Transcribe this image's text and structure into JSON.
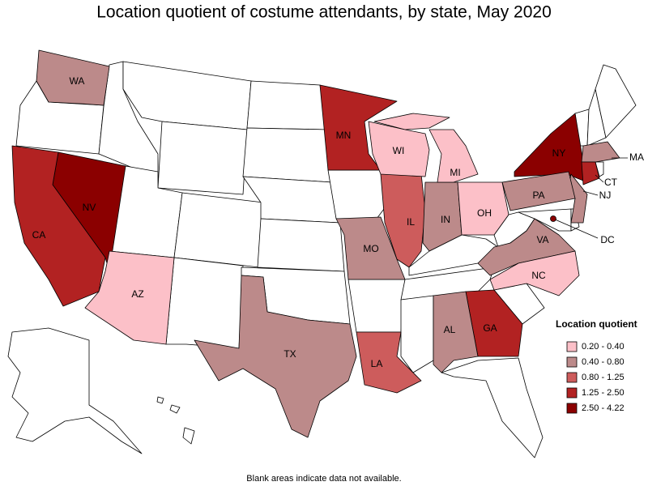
{
  "title": "Location quotient of costume attendants, by state, May 2020",
  "note": "Blank areas indicate data not available.",
  "legend": {
    "title": "Location quotient",
    "classes": [
      {
        "label": "0.20 - 0.40",
        "color": "#fcc0c8"
      },
      {
        "label": "0.40 - 0.80",
        "color": "#bc8a8a"
      },
      {
        "label": "0.80 - 1.25",
        "color": "#cd5c5c"
      },
      {
        "label": "1.25 - 2.50",
        "color": "#b22222"
      },
      {
        "label": "2.50 - 4.22",
        "color": "#8b0000"
      }
    ]
  },
  "states": [
    {
      "abbr": "WA",
      "class": 1
    },
    {
      "abbr": "MN",
      "class": 3
    },
    {
      "abbr": "NY",
      "class": 4
    },
    {
      "abbr": "MA",
      "class": 1
    },
    {
      "abbr": "CT",
      "class": 3
    },
    {
      "abbr": "NJ",
      "class": 1
    },
    {
      "abbr": "PA",
      "class": 1
    },
    {
      "abbr": "DC",
      "class": 4
    },
    {
      "abbr": "VA",
      "class": 1
    },
    {
      "abbr": "NC",
      "class": 0
    },
    {
      "abbr": "GA",
      "class": 3
    },
    {
      "abbr": "AL",
      "class": 1
    },
    {
      "abbr": "LA",
      "class": 2
    },
    {
      "abbr": "TX",
      "class": 1
    },
    {
      "abbr": "MO",
      "class": 1
    },
    {
      "abbr": "IL",
      "class": 2
    },
    {
      "abbr": "IN",
      "class": 1
    },
    {
      "abbr": "OH",
      "class": 0
    },
    {
      "abbr": "MI",
      "class": 0
    },
    {
      "abbr": "WI",
      "class": 0
    },
    {
      "abbr": "NV",
      "class": 4
    },
    {
      "abbr": "CA",
      "class": 3
    },
    {
      "abbr": "AZ",
      "class": 0
    }
  ]
}
